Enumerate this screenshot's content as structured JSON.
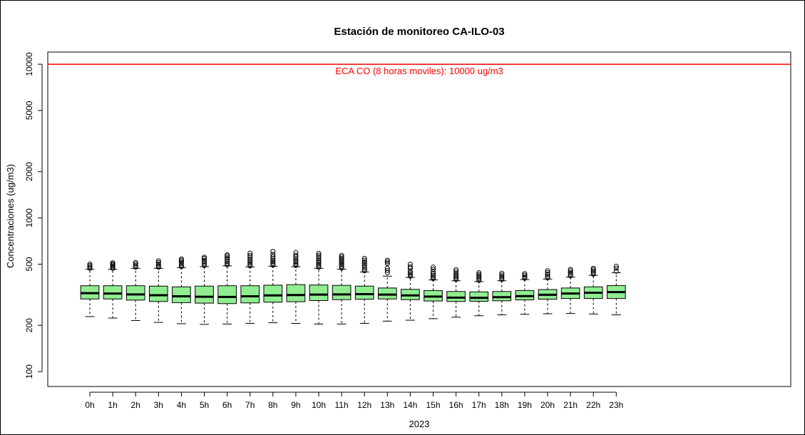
{
  "chart_data": {
    "type": "boxplot",
    "title": "Estación de monitoreo CA-ILO-03",
    "xlabel": "2023",
    "ylabel": "Concentraciones (ug/m3)",
    "y_scale": "log",
    "ylim": [
      80,
      12000
    ],
    "yticks": [
      100,
      200,
      500,
      1000,
      2000,
      5000,
      10000
    ],
    "grid": false,
    "box_color": "#90ee90",
    "reference_line": {
      "value": 10000,
      "label": "ECA CO (8 horas moviles): 10000 ug/m3",
      "color": "#ff0000"
    },
    "categories": [
      "0h",
      "1h",
      "2h",
      "3h",
      "4h",
      "5h",
      "6h",
      "7h",
      "8h",
      "9h",
      "10h",
      "11h",
      "12h",
      "13h",
      "14h",
      "15h",
      "16h",
      "17h",
      "18h",
      "19h",
      "20h",
      "21h",
      "22h",
      "23h"
    ],
    "boxes": [
      {
        "low": 228,
        "q1": 297,
        "median": 324,
        "q3": 362,
        "high": 463,
        "outliers": [
          470,
          480,
          490,
          500
        ]
      },
      {
        "low": 223,
        "q1": 297,
        "median": 322,
        "q3": 362,
        "high": 463,
        "outliers": [
          470,
          478,
          486,
          494,
          502,
          510
        ]
      },
      {
        "low": 215,
        "q1": 292,
        "median": 318,
        "q3": 362,
        "high": 470,
        "outliers": [
          478,
          490,
          502,
          512
        ]
      },
      {
        "low": 209,
        "q1": 286,
        "median": 314,
        "q3": 360,
        "high": 470,
        "outliers": [
          478,
          488,
          500,
          512,
          525
        ]
      },
      {
        "low": 205,
        "q1": 281,
        "median": 309,
        "q3": 356,
        "high": 475,
        "outliers": [
          482,
          493,
          505,
          518,
          530,
          540
        ]
      },
      {
        "low": 203,
        "q1": 279,
        "median": 307,
        "q3": 360,
        "high": 482,
        "outliers": [
          490,
          503,
          516,
          530,
          545,
          555
        ]
      },
      {
        "low": 204,
        "q1": 277,
        "median": 306,
        "q3": 362,
        "high": 488,
        "outliers": [
          495,
          508,
          521,
          535,
          550,
          565,
          575
        ]
      },
      {
        "low": 206,
        "q1": 280,
        "median": 309,
        "q3": 362,
        "high": 480,
        "outliers": [
          488,
          500,
          513,
          526,
          540,
          555,
          570,
          590
        ]
      },
      {
        "low": 208,
        "q1": 283,
        "median": 313,
        "q3": 365,
        "high": 485,
        "outliers": [
          493,
          505,
          518,
          531,
          545,
          560,
          580,
          605
        ]
      },
      {
        "low": 206,
        "q1": 285,
        "median": 315,
        "q3": 368,
        "high": 482,
        "outliers": [
          490,
          502,
          515,
          528,
          542,
          557,
          572,
          595
        ]
      },
      {
        "low": 204,
        "q1": 290,
        "median": 317,
        "q3": 366,
        "high": 470,
        "outliers": [
          478,
          490,
          502,
          515,
          528,
          542,
          557,
          572,
          588
        ]
      },
      {
        "low": 204,
        "q1": 294,
        "median": 318,
        "q3": 364,
        "high": 464,
        "outliers": [
          472,
          484,
          496,
          508,
          520,
          532,
          545,
          558,
          570
        ]
      },
      {
        "low": 206,
        "q1": 296,
        "median": 319,
        "q3": 360,
        "high": 445,
        "outliers": [
          453,
          465,
          478,
          491,
          504,
          517,
          530,
          545
        ]
      },
      {
        "low": 213,
        "q1": 297,
        "median": 317,
        "q3": 350,
        "high": 418,
        "outliers": [
          440,
          455,
          470,
          505,
          518,
          530
        ]
      },
      {
        "low": 216,
        "q1": 294,
        "median": 313,
        "q3": 343,
        "high": 410,
        "outliers": [
          418,
          428,
          438,
          450,
          470,
          480,
          500
        ]
      },
      {
        "low": 221,
        "q1": 288,
        "median": 308,
        "q3": 337,
        "high": 395,
        "outliers": [
          403,
          412,
          421,
          432,
          446,
          463,
          478
        ]
      },
      {
        "low": 226,
        "q1": 286,
        "median": 303,
        "q3": 332,
        "high": 390,
        "outliers": [
          398,
          407,
          416,
          425,
          435,
          447,
          460
        ]
      },
      {
        "low": 231,
        "q1": 287,
        "median": 302,
        "q3": 330,
        "high": 385,
        "outliers": [
          393,
          402,
          411,
          420,
          430,
          440
        ]
      },
      {
        "low": 234,
        "q1": 289,
        "median": 305,
        "q3": 332,
        "high": 390,
        "outliers": [
          398,
          406,
          415,
          425,
          436
        ]
      },
      {
        "low": 236,
        "q1": 293,
        "median": 310,
        "q3": 337,
        "high": 397,
        "outliers": [
          405,
          414,
          424,
          434
        ]
      },
      {
        "low": 238,
        "q1": 296,
        "median": 316,
        "q3": 342,
        "high": 400,
        "outliers": [
          408,
          418,
          429,
          441,
          453
        ]
      },
      {
        "low": 239,
        "q1": 299,
        "median": 322,
        "q3": 350,
        "high": 412,
        "outliers": [
          420,
          430,
          440,
          452,
          462
        ]
      },
      {
        "low": 237,
        "q1": 299,
        "median": 326,
        "q3": 356,
        "high": 423,
        "outliers": [
          431,
          441,
          451,
          461,
          470
        ]
      },
      {
        "low": 234,
        "q1": 299,
        "median": 329,
        "q3": 363,
        "high": 440,
        "outliers": [
          450,
          470,
          485
        ]
      }
    ]
  }
}
